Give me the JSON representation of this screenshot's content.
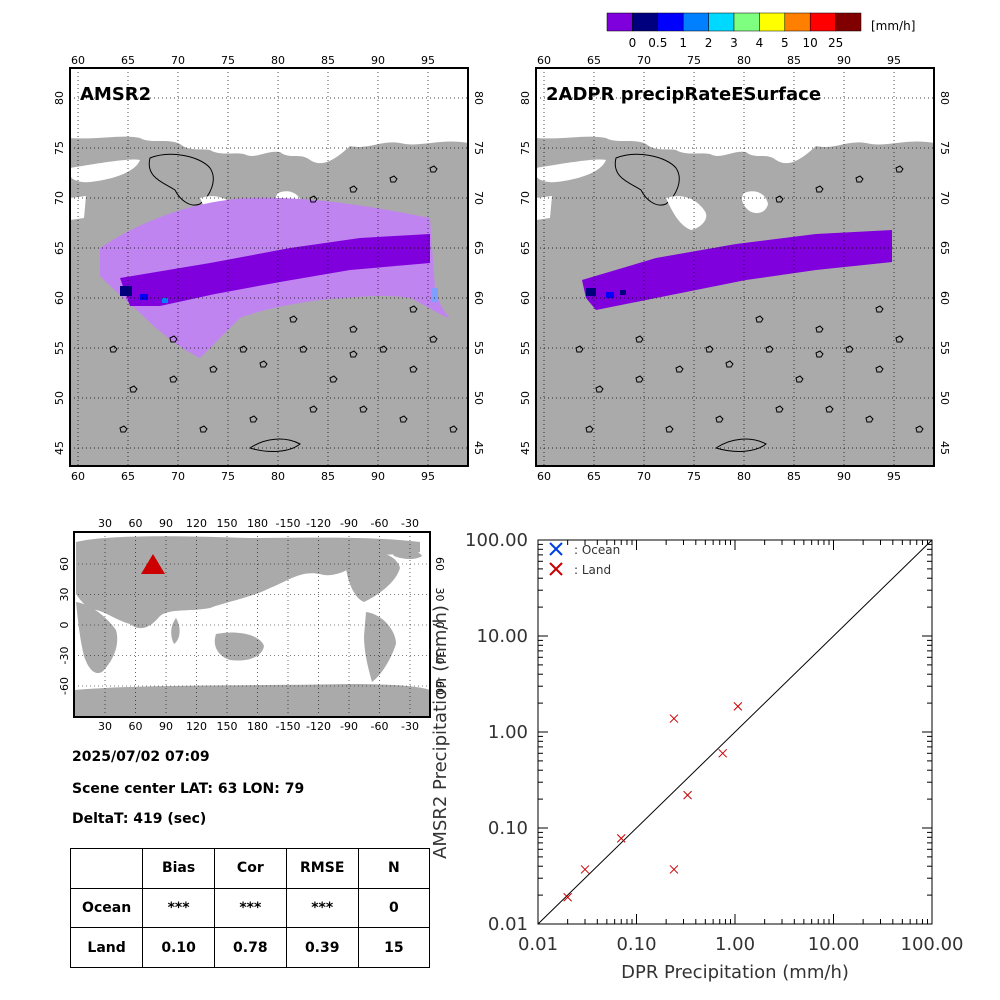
{
  "colorbar": {
    "unit": "[mm/h]",
    "ticks": [
      "0",
      "0.5",
      "1",
      "2",
      "3",
      "4",
      "5",
      "10",
      "25"
    ],
    "colors": [
      "#7f00dc",
      "#00007f",
      "#0000ff",
      "#0080ff",
      "#00d9ff",
      "#7fff80",
      "#ffff00",
      "#ff8000",
      "#ff0000",
      "#800000"
    ]
  },
  "maps": {
    "left_title": "AMSR2",
    "right_title": "2ADPR precipRateESurface",
    "lon_ticks": [
      "60",
      "65",
      "70",
      "75",
      "80",
      "85",
      "90",
      "95"
    ],
    "lat_ticks": [
      "80",
      "75",
      "70",
      "65",
      "60",
      "55",
      "50",
      "45"
    ],
    "land_color": "#aaaaaa",
    "light_rain_color": "#c084f0",
    "rain_color": "#7f00dc"
  },
  "globe": {
    "lon_ticks": [
      "30",
      "60",
      "90",
      "120",
      "150",
      "180",
      "-150",
      "-120",
      "-90",
      "-60",
      "-30"
    ],
    "lat_ticks": [
      "60",
      "30",
      "0",
      "-30",
      "-60"
    ],
    "marker_color": "#cc0000"
  },
  "info": {
    "datetime": "2025/07/02 07:09",
    "scene_center": "Scene center LAT: 63   LON:  79",
    "deltat": "DeltaT:  419 (sec)"
  },
  "stats": {
    "headers": [
      "",
      "Bias",
      "Cor",
      "RMSE",
      "N"
    ],
    "rows": [
      [
        "Ocean",
        "***",
        "***",
        "***",
        "0"
      ],
      [
        "Land",
        "0.10",
        "0.78",
        "0.39",
        "15"
      ]
    ]
  },
  "chart_data": {
    "type": "scatter",
    "xlabel": "DPR Precipitation (mm/h)",
    "ylabel": "AMSR2 Precipitation (mm/h)",
    "xscale": "log",
    "yscale": "log",
    "xlim": [
      0.01,
      100
    ],
    "ylim": [
      0.01,
      100
    ],
    "x_tick_labels": [
      "0.01",
      "0.10",
      "1.00",
      "10.00",
      "100.00"
    ],
    "y_tick_labels": [
      "0.01",
      "0.10",
      "1.00",
      "10.00",
      "100.00"
    ],
    "diagonal": "1:1 line",
    "legend_position": "top-left",
    "series": [
      {
        "name": ": Ocean",
        "color": "#0040e0",
        "marker": "x",
        "points": []
      },
      {
        "name": ": Land",
        "color": "#cc0000",
        "marker": "x",
        "points": [
          [
            0.02,
            0.019
          ],
          [
            0.03,
            0.037
          ],
          [
            0.07,
            0.078
          ],
          [
            0.24,
            1.38
          ],
          [
            0.24,
            0.037
          ],
          [
            0.33,
            0.22
          ],
          [
            0.75,
            0.6
          ],
          [
            1.07,
            1.85
          ]
        ]
      }
    ]
  }
}
